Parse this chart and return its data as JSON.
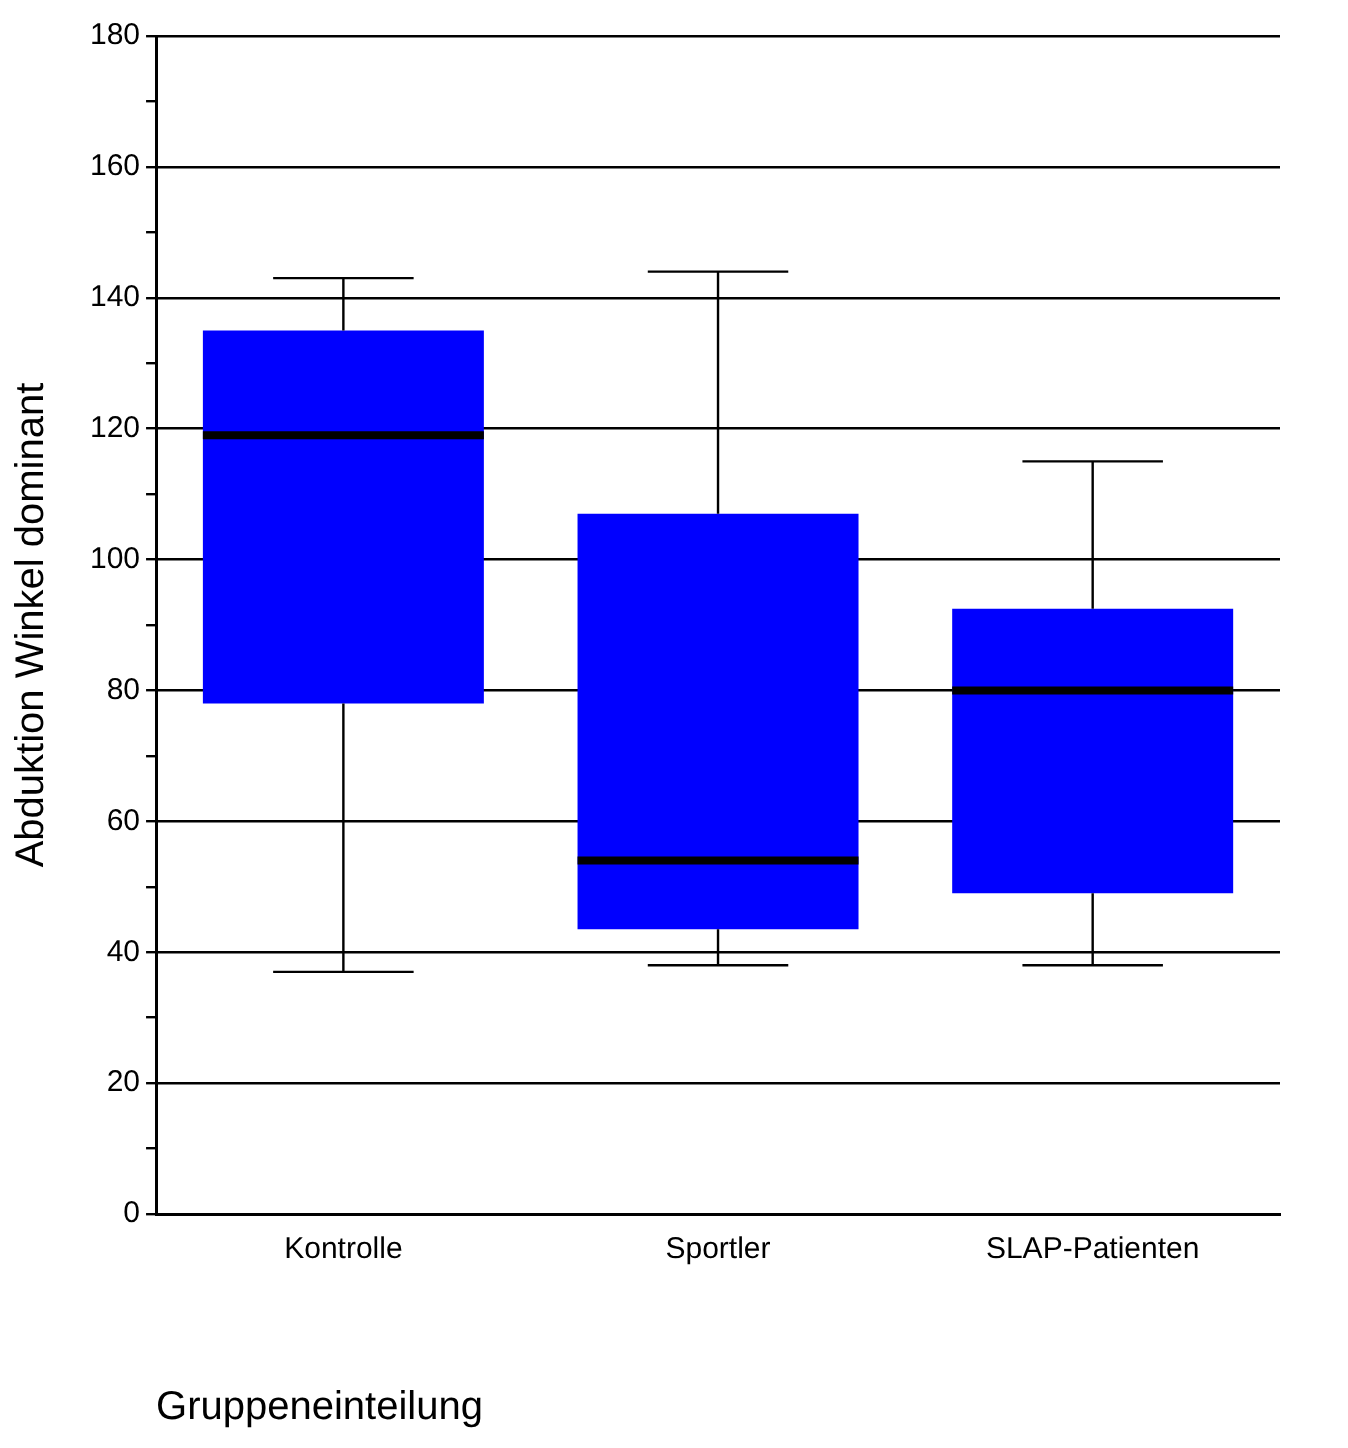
{
  "chart_data": {
    "type": "box",
    "xlabel": "Gruppeneinteilung",
    "ylabel": "Abduktion Winkel dominant",
    "categories": [
      "Kontrolle",
      "Sportler",
      "SLAP-Patienten"
    ],
    "series": [
      {
        "color": "#0000ff",
        "boxes": [
          {
            "low": 37,
            "q1": 78,
            "median": 119,
            "q3": 135,
            "high": 143
          },
          {
            "low": 38,
            "q1": 43.5,
            "median": 54,
            "q3": 107,
            "high": 144
          },
          {
            "low": 38,
            "q1": 49,
            "median": 80,
            "q3": 92.5,
            "high": 115
          }
        ]
      }
    ],
    "ylim": [
      0,
      180
    ],
    "yticks": [
      0,
      {
        "value": 10,
        "label": null
      },
      20,
      {
        "value": 30,
        "label": null
      },
      40,
      {
        "value": 50,
        "label": null
      },
      60,
      {
        "value": 70,
        "label": null
      },
      80,
      {
        "value": 90,
        "label": null
      },
      100,
      {
        "value": 110,
        "label": null
      },
      120,
      {
        "value": 130,
        "label": null
      },
      140,
      {
        "value": 150,
        "label": null
      },
      160,
      {
        "value": 170,
        "label": null
      },
      180
    ],
    "grid": "y",
    "legend": false
  }
}
